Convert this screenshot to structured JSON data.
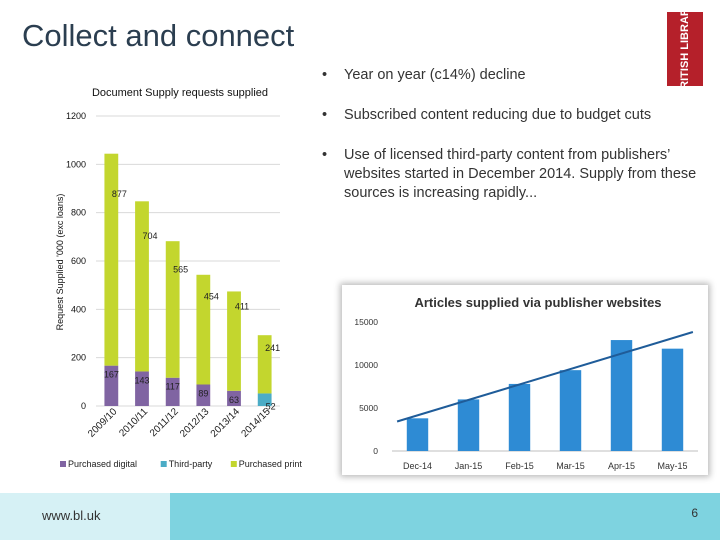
{
  "slide": {
    "title": "Collect and connect",
    "logo_text": "BRITISH LIBRARY",
    "footer_url": "www.bl.uk",
    "page_number": "6"
  },
  "bullets": [
    {
      "marker": "•",
      "text": "Year on year (c14%) decline"
    },
    {
      "marker": "•",
      "text": "Subscribed content reducing due to budget cuts"
    },
    {
      "marker": "•",
      "text": "Use of licensed third-party content from publishers’ websites started in December 2014. Supply from these sources is increasing rapidly..."
    }
  ],
  "colors": {
    "title": "#2b3e50",
    "purchased_digital": "#8064a2",
    "third_party": "#4bacc6",
    "purchased_print": "#c3d62e",
    "blue_bar": "#2e8bd4",
    "trend": "#1f5c99",
    "footer": "#7ed3e0"
  },
  "chart_data": [
    {
      "type": "bar",
      "title": "Document Supply requests supplied",
      "ylabel": "Request Supplied '000 (exc loans)",
      "ylim": [
        0,
        1200
      ],
      "yticks": [
        "0",
        "200",
        "400",
        "600",
        "800",
        "1000",
        "1200"
      ],
      "categories": [
        "2009/10",
        "2010/11",
        "2011/12",
        "2012/13",
        "2013/14",
        "2014/15"
      ],
      "series": [
        {
          "name": "Purchased digital",
          "values": [
            167,
            143,
            117,
            89,
            63,
            0
          ]
        },
        {
          "name": "Third-party",
          "values": [
            0,
            0,
            0,
            0,
            0,
            52
          ]
        },
        {
          "name": "Purchased print",
          "values": [
            877,
            704,
            565,
            454,
            411,
            241
          ]
        }
      ],
      "data_labels": {
        "purchased_digital": [
          "167",
          "143",
          "117",
          "89",
          "63",
          ""
        ],
        "third_party": [
          "",
          "",
          "",
          "",
          "",
          "52"
        ],
        "purchased_print": [
          "877",
          "704",
          "565",
          "454",
          "411",
          "241"
        ]
      },
      "stacked": true,
      "legend": "bottom",
      "grid": true
    },
    {
      "type": "bar",
      "title": "Articles supplied via  publisher websites",
      "ylim": [
        0,
        15000
      ],
      "yticks": [
        "0",
        "5000",
        "10000",
        "15000"
      ],
      "categories": [
        "Dec-14",
        "Jan-15",
        "Feb-15",
        "Mar-15",
        "Apr-15",
        "May-15"
      ],
      "values": [
        3800,
        6000,
        7800,
        9400,
        12900,
        11900
      ],
      "trendline": true,
      "grid": false
    }
  ]
}
